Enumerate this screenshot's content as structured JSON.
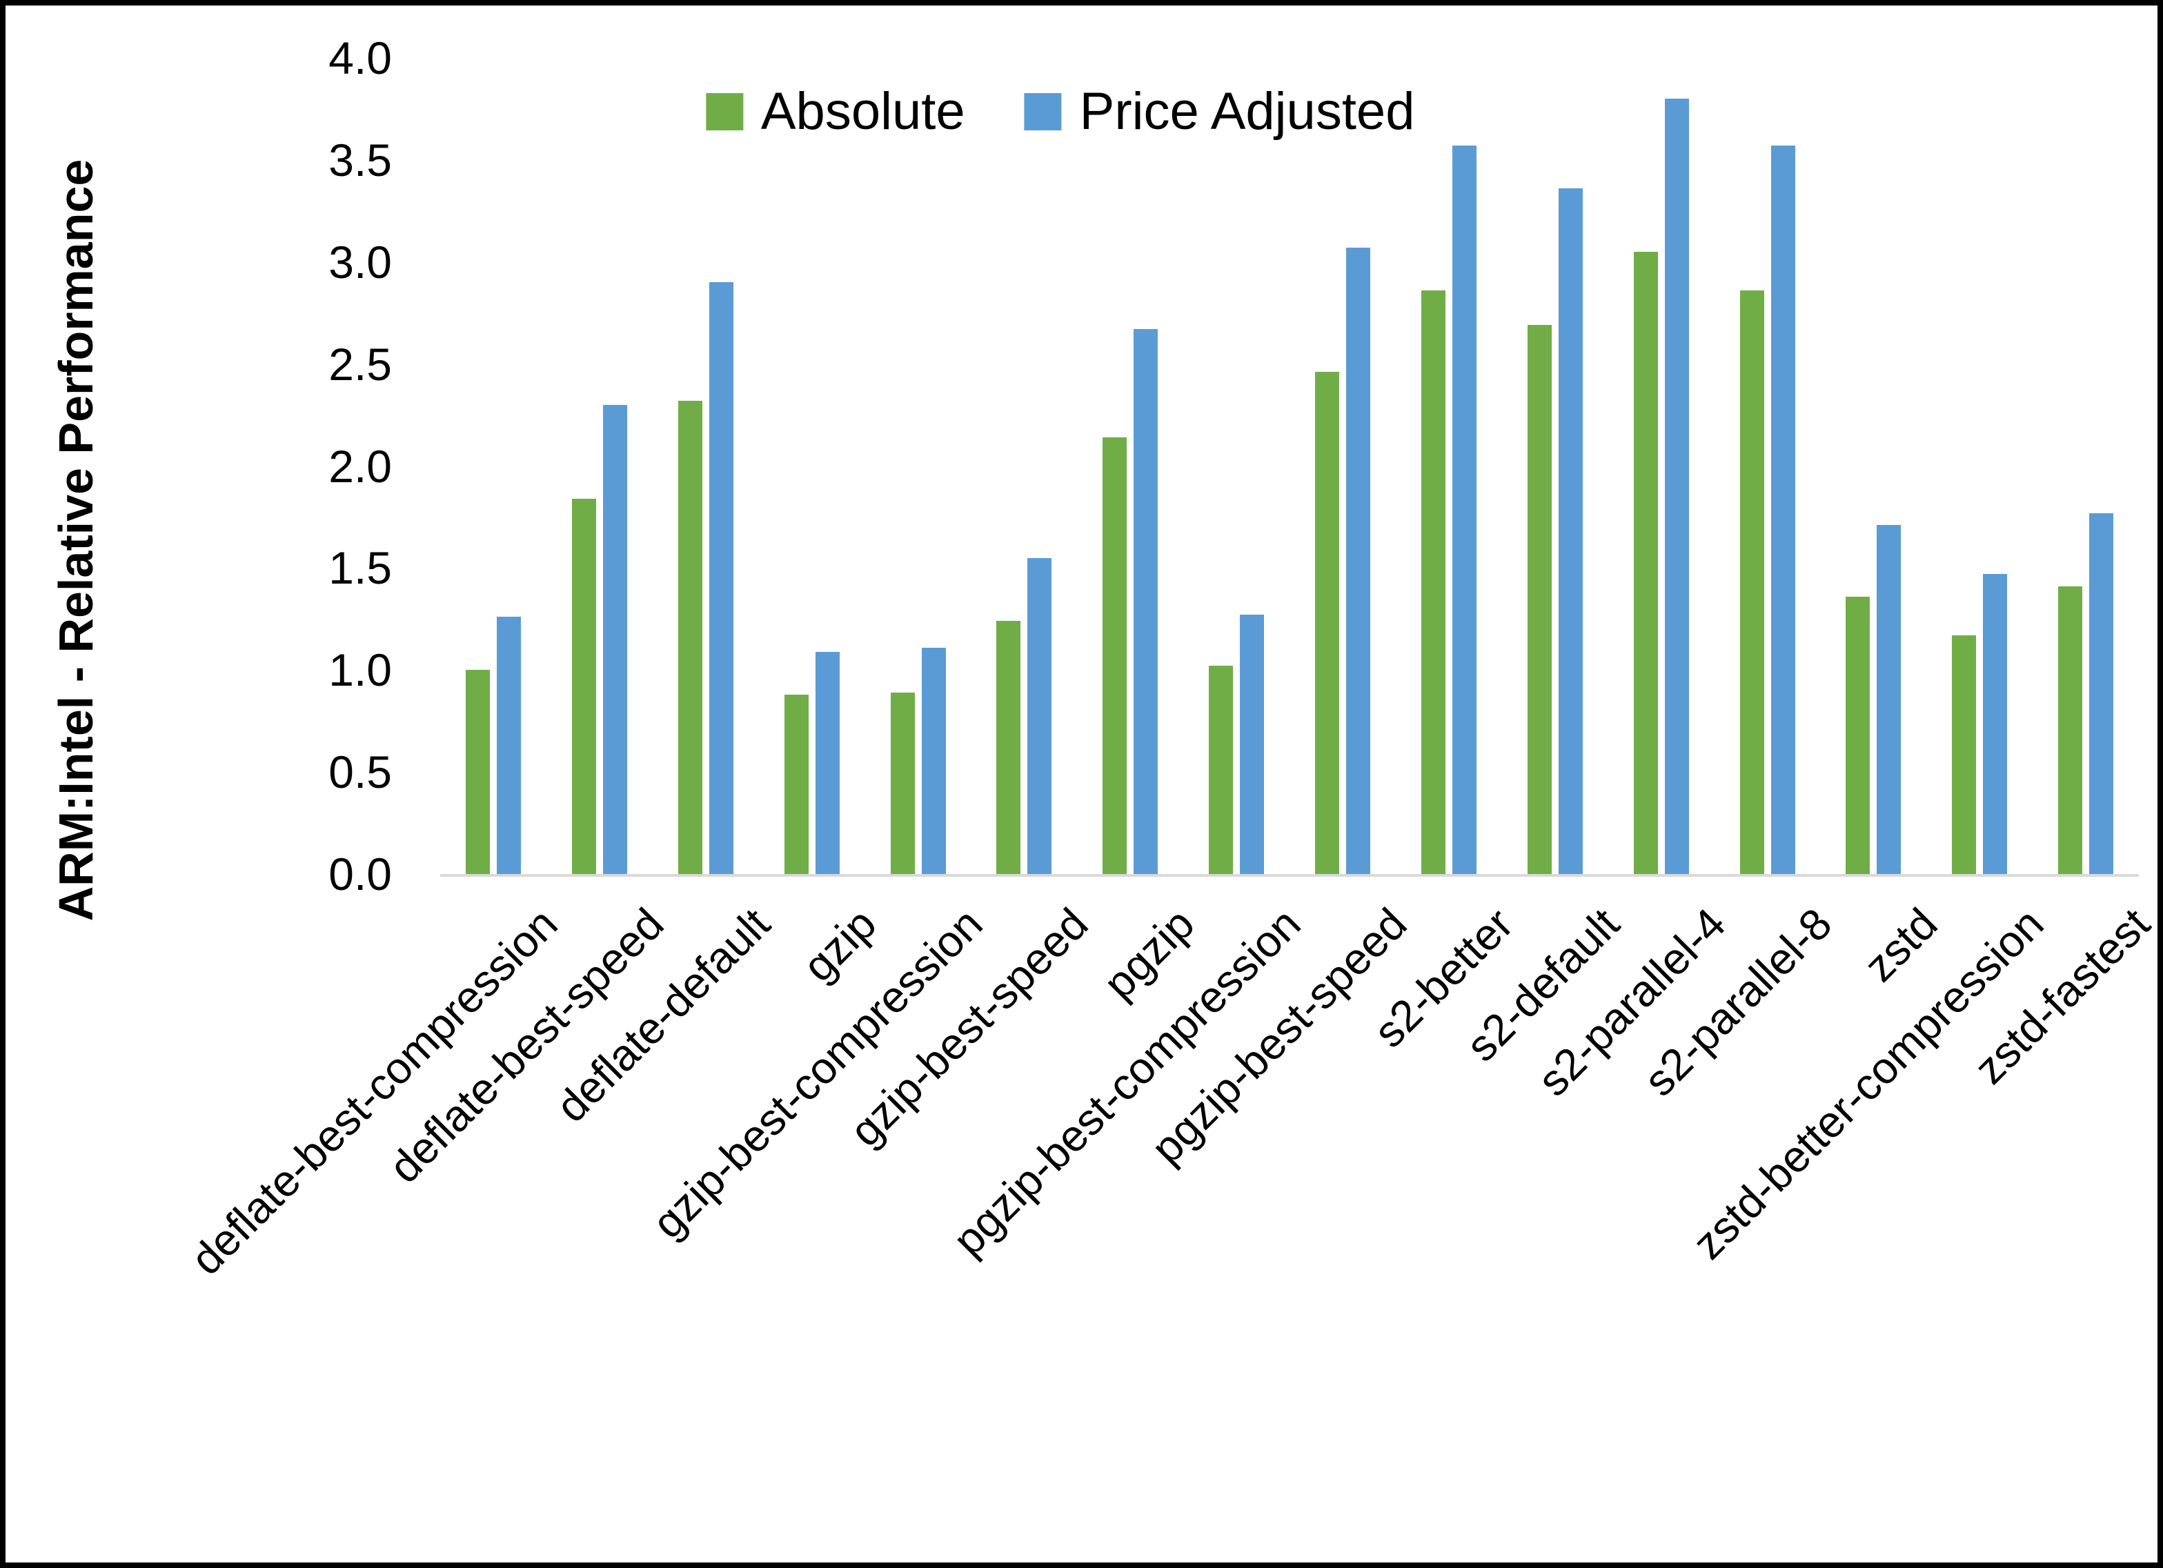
{
  "chart_data": {
    "type": "bar",
    "title": "",
    "ylabel": "ARM:Intel - Relative Performance",
    "xlabel": "",
    "ylim": [
      0,
      4
    ],
    "y_tick_step": 0.5,
    "y_ticks": [
      "0.0",
      "0.5",
      "1.0",
      "1.5",
      "2.0",
      "2.5",
      "3.0",
      "3.5",
      "4.0"
    ],
    "grid": false,
    "legend_position": "top-center",
    "categories": [
      "deflate-best-compression",
      "deflate-best-speed",
      "deflate-default",
      "gzip",
      "gzip-best-compression",
      "gzip-best-speed",
      "pgzip",
      "pgzip-best-compression",
      "pgzip-best-speed",
      "s2-better",
      "s2-default",
      "s2-parallel-4",
      "s2-parallel-8",
      "zstd",
      "zstd-better-compression",
      "zstd-fastest"
    ],
    "series": [
      {
        "name": "Absolute",
        "color": "#70AD47",
        "values": [
          1.0,
          1.84,
          2.32,
          0.88,
          0.89,
          1.24,
          2.14,
          1.02,
          2.46,
          2.86,
          2.69,
          3.05,
          2.86,
          1.36,
          1.17,
          1.41
        ]
      },
      {
        "name": "Price Adjusted",
        "color": "#5B9BD5",
        "values": [
          1.26,
          2.3,
          2.9,
          1.09,
          1.11,
          1.55,
          2.67,
          1.27,
          3.07,
          3.57,
          3.36,
          3.8,
          3.57,
          1.71,
          1.47,
          1.77
        ]
      }
    ]
  },
  "colors": {
    "axis_line": "#D9D9D9",
    "text": "#000000",
    "background": "#FFFFFF",
    "frame_border": "#000000"
  }
}
